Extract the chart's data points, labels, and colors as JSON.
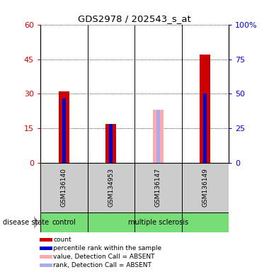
{
  "title": "GDS2978 / 202543_s_at",
  "samples": [
    "GSM136140",
    "GSM134953",
    "GSM136147",
    "GSM136149"
  ],
  "groups": [
    "control",
    "multiple sclerosis",
    "multiple sclerosis",
    "multiple sclerosis"
  ],
  "red_bars": [
    31,
    17,
    0,
    47
  ],
  "blue_bars": [
    28,
    17,
    0,
    30
  ],
  "pink_bars": [
    0,
    0,
    23,
    0
  ],
  "lightblue_bars": [
    0,
    0,
    23,
    0
  ],
  "ylim": [
    0,
    60
  ],
  "yticks_left": [
    0,
    15,
    30,
    45,
    60
  ],
  "yticks_right_labels": [
    "0",
    "25",
    "50",
    "75",
    "100%"
  ],
  "left_tick_color": "#cc0000",
  "right_tick_color": "#0000cc",
  "red_color": "#cc0000",
  "blue_color": "#0000cc",
  "pink_color": "#ffaaaa",
  "lightblue_color": "#aaaaee",
  "control_color": "#77dd77",
  "ms_color": "#77dd77",
  "label_box_color": "#cccccc",
  "legend_entries": [
    "count",
    "percentile rank within the sample",
    "value, Detection Call = ABSENT",
    "rank, Detection Call = ABSENT"
  ]
}
